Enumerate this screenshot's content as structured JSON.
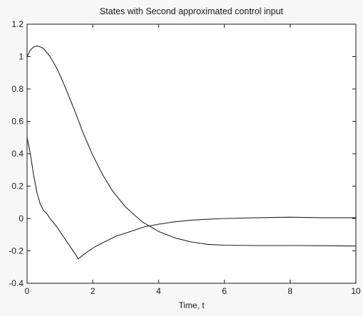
{
  "chart_data": {
    "type": "line",
    "title": "States with Second approximated control input",
    "xlabel": "Time, t",
    "ylabel": "",
    "xlim": [
      0,
      10
    ],
    "ylim": [
      -0.4,
      1.2
    ],
    "xticks": [
      0,
      2,
      4,
      6,
      8,
      10
    ],
    "yticks": [
      -0.4,
      -0.2,
      0,
      0.2,
      0.4,
      0.6,
      0.8,
      1,
      1.2
    ],
    "xtick_labels": [
      "0",
      "2",
      "4",
      "6",
      "8",
      "10"
    ],
    "ytick_labels": [
      "-0.4",
      "-0.2",
      "0",
      "0.2",
      "0.4",
      "0.6",
      "0.8",
      "1",
      "1.2"
    ],
    "grid": false,
    "line_color": "#222222",
    "series": [
      {
        "x": [
          0,
          0.1,
          0.2,
          0.3,
          0.4,
          0.5,
          0.7,
          0.9,
          1.1,
          1.3,
          1.5,
          1.7,
          2.0,
          2.3,
          2.6,
          3.0,
          3.5,
          4.0,
          4.5,
          5.0,
          5.5,
          6.0,
          7.0,
          8.0,
          9.0,
          10.0
        ],
        "y": [
          1.0,
          1.04,
          1.06,
          1.065,
          1.06,
          1.05,
          1.0,
          0.93,
          0.84,
          0.74,
          0.64,
          0.53,
          0.39,
          0.27,
          0.17,
          0.07,
          -0.02,
          -0.08,
          -0.12,
          -0.145,
          -0.16,
          -0.165,
          -0.167,
          -0.167,
          -0.168,
          -0.17
        ]
      },
      {
        "x": [
          0,
          0.1,
          0.2,
          0.3,
          0.4,
          0.5,
          0.6,
          0.7,
          0.9,
          1.1,
          1.3,
          1.5,
          1.55,
          1.8,
          2.1,
          2.4,
          2.7,
          3.0,
          3.3,
          3.6,
          4.0,
          4.5,
          5.0,
          5.5,
          6.0,
          7.0,
          8.0,
          9.0,
          10.0
        ],
        "y": [
          0.5,
          0.4,
          0.27,
          0.16,
          0.09,
          0.05,
          0.03,
          0.0,
          -0.05,
          -0.11,
          -0.17,
          -0.23,
          -0.25,
          -0.21,
          -0.17,
          -0.14,
          -0.11,
          -0.09,
          -0.07,
          -0.05,
          -0.035,
          -0.02,
          -0.01,
          -0.005,
          0.0,
          0.005,
          0.008,
          0.005,
          0.005
        ]
      }
    ]
  }
}
